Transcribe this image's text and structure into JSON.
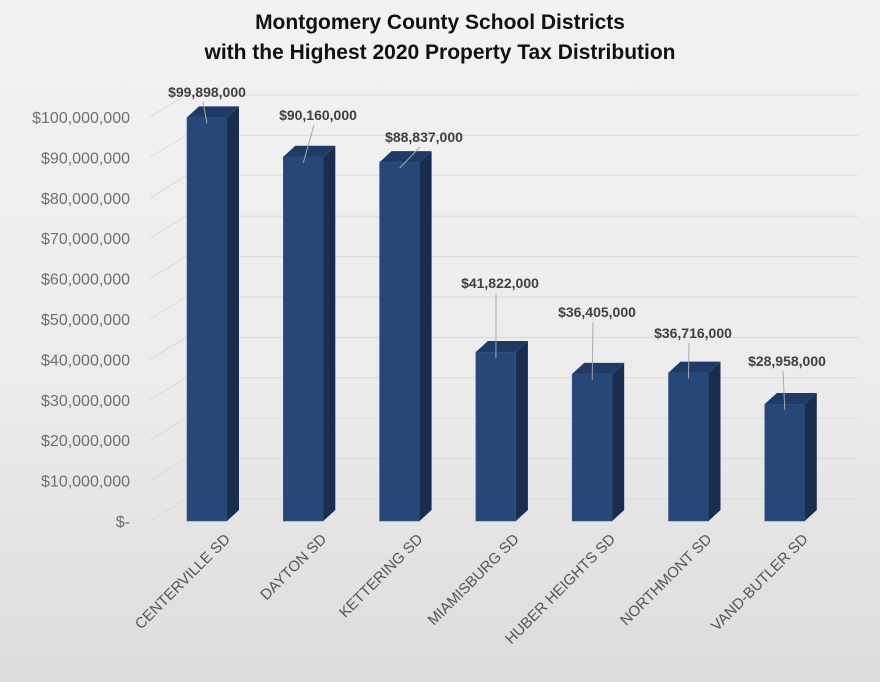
{
  "chart_data": {
    "type": "bar",
    "variant": "3d-column",
    "title": "Montgomery County School Districts\nwith the Highest 2020 Property Tax Distribution",
    "title_lines": [
      "Montgomery County School Districts",
      "with the Highest 2020 Property Tax Distribution"
    ],
    "xlabel": "",
    "ylabel": "",
    "categories": [
      "CENTERVILLE SD",
      "DAYTON SD",
      "KETTERING SD",
      "MIAMISBURG SD",
      "HUBER HEIGHTS SD",
      "NORTHMONT SD",
      "VAND-BUTLER SD"
    ],
    "values": [
      99898000,
      90160000,
      88837000,
      41822000,
      36405000,
      36716000,
      28958000
    ],
    "data_labels": [
      "$99,898,000",
      "$90,160,000",
      "$88,837,000",
      "$41,822,000",
      "$36,405,000",
      "$36,716,000",
      "$28,958,000"
    ],
    "ylim": [
      0,
      100000000
    ],
    "ytick_values": [
      0,
      10000000,
      20000000,
      30000000,
      40000000,
      50000000,
      60000000,
      70000000,
      80000000,
      90000000,
      100000000
    ],
    "ytick_labels": [
      "$-",
      "$10,000,000",
      "$20,000,000",
      "$30,000,000",
      "$40,000,000",
      "$50,000,000",
      "$60,000,000",
      "$70,000,000",
      "$80,000,000",
      "$90,000,000",
      "$100,000,000"
    ],
    "grid": true,
    "legend": null,
    "colors": {
      "bar_front": "#264778",
      "bar_side": "#1b2d4e",
      "bar_top": "#1f3a66",
      "gridline": "#d9d9d9",
      "label_text": "#404040",
      "axis_text": "#6f6f6f",
      "leader_line": "#a6a6a6"
    }
  }
}
